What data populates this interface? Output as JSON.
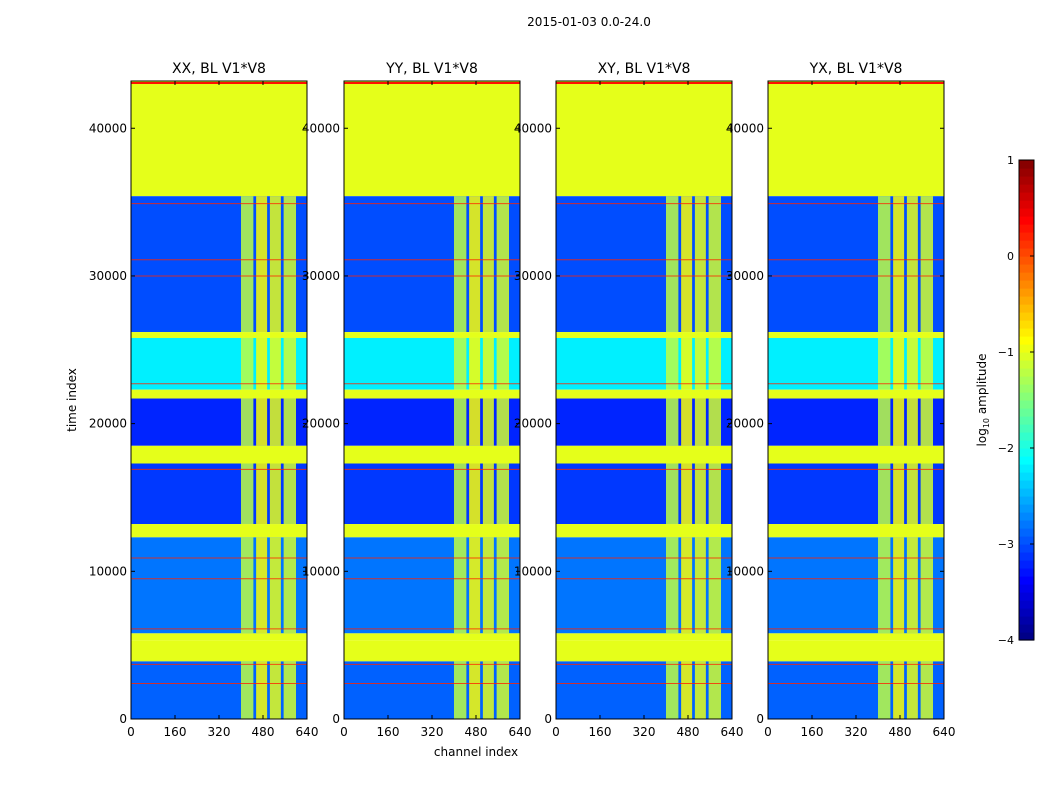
{
  "figure": {
    "suptitle": "2015-01-03 0.0-24.0",
    "colorbar_label": "log10 amplitude",
    "colorbar_label_main": "log",
    "colorbar_label_sub": "10",
    "colorbar_label_rest": " amplitude"
  },
  "chart_data": {
    "type": "heatmap",
    "xlabel": "channel index",
    "ylabel": "time index",
    "xlim": [
      0,
      640
    ],
    "ylim": [
      0,
      43200
    ],
    "xticks": [
      0,
      160,
      320,
      480,
      640
    ],
    "xtick_labels": [
      "0",
      "160",
      "320",
      "480",
      "640"
    ],
    "yticks": [
      0,
      10000,
      20000,
      30000,
      40000
    ],
    "ytick_labels": [
      "0",
      "10000",
      "20000",
      "30000",
      "40000"
    ],
    "colorbar": {
      "range": [
        -4,
        1
      ],
      "ticks": [
        1,
        0,
        -1,
        -2,
        -3,
        -4
      ],
      "tick_labels": [
        "1",
        "0",
        "−1",
        "−2",
        "−3",
        "−4"
      ]
    },
    "panels": [
      {
        "title": "XX, BL V1*V8",
        "show_ylabel": true,
        "show_xlabel": false
      },
      {
        "title": "YY, BL V1*V8",
        "show_ylabel": false,
        "show_xlabel": true
      },
      {
        "title": "XY, BL V1*V8",
        "show_ylabel": false,
        "show_xlabel": false
      },
      {
        "title": "YX, BL V1*V8",
        "show_ylabel": false,
        "show_xlabel": false
      }
    ],
    "flagged_value": -1.0,
    "time_bands": [
      {
        "from": 35400,
        "to": 43200,
        "kind": "flagged"
      },
      {
        "from": 26200,
        "to": 35400,
        "kind": "data",
        "level": -3.0
      },
      {
        "from": 25800,
        "to": 26200,
        "kind": "flagged"
      },
      {
        "from": 22300,
        "to": 25800,
        "kind": "data",
        "level": -2.2
      },
      {
        "from": 21700,
        "to": 22300,
        "kind": "flagged"
      },
      {
        "from": 18500,
        "to": 21700,
        "kind": "data",
        "level": -3.2
      },
      {
        "from": 17300,
        "to": 18500,
        "kind": "flagged"
      },
      {
        "from": 13200,
        "to": 17300,
        "kind": "data",
        "level": -3.1
      },
      {
        "from": 12300,
        "to": 13200,
        "kind": "flagged"
      },
      {
        "from": 5800,
        "to": 12300,
        "kind": "data",
        "level": -2.8
      },
      {
        "from": 5300,
        "to": 5800,
        "kind": "flagged"
      },
      {
        "from": 3900,
        "to": 5300,
        "kind": "flagged"
      },
      {
        "from": 0,
        "to": 3900,
        "kind": "data",
        "level": -2.9
      }
    ],
    "bright_channel_columns": [
      {
        "from": 400,
        "to": 445,
        "level": -1.2
      },
      {
        "from": 455,
        "to": 495,
        "level": -0.9
      },
      {
        "from": 505,
        "to": 545,
        "level": -1.0
      },
      {
        "from": 555,
        "to": 600,
        "level": -1.1
      }
    ],
    "rfi_time_lines": [
      34900,
      31100,
      30000,
      22700,
      16900,
      10900,
      9500,
      6100,
      3700,
      2400
    ]
  }
}
